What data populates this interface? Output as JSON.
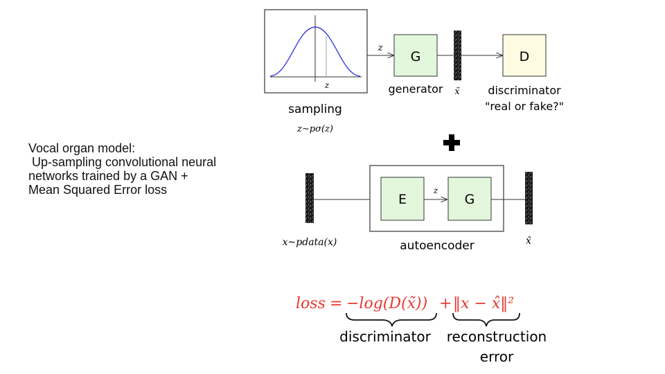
{
  "side_text": {
    "line1": "Vocal organ model:",
    "line2": " Up-sampling convolutional neural",
    "line3": "networks trained by a GAN +",
    "line4": "Mean Squared Error loss"
  },
  "gan": {
    "axis_label": "z",
    "arrow_label": "z",
    "generator_block": "G",
    "discriminator_block": "D",
    "sampling_label": "sampling",
    "sampling_formula": "z∼pσ(z)",
    "generator_label": "generator",
    "generated_sample": "x̃",
    "discriminator_label": "discriminator",
    "discriminator_question": "\"real or fake?\""
  },
  "plus_symbol": "plus",
  "autoencoder": {
    "encoder_block": "E",
    "latent_label": "z",
    "generator_block": "G",
    "input_label": "x∼pdata(x)",
    "label": "autoencoder",
    "output_label": "x̂"
  },
  "loss": {
    "lhs": "loss",
    "equals": "=",
    "term1": "−log(D(x̃))",
    "plus": "+",
    "term2": "‖x − x̂‖²",
    "brace1_label": "discriminator",
    "brace2_label_line1": "reconstruction",
    "brace2_label_line2": "error",
    "color": "#e8382f"
  },
  "colors": {
    "block_green": "#e3f7dc",
    "block_yellow": "#fdfbe1",
    "curve_blue": "#3b3bdd"
  }
}
